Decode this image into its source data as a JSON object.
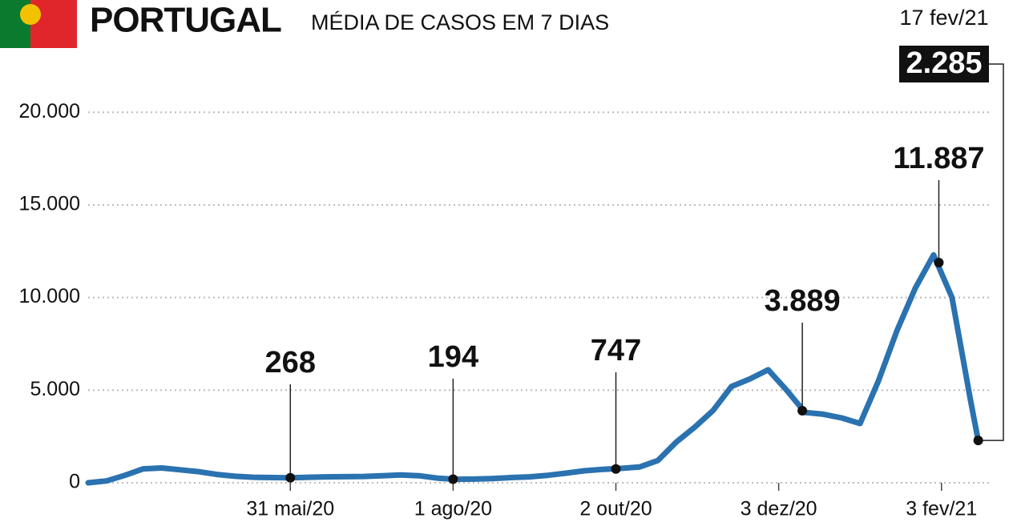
{
  "chart_data": {
    "type": "line",
    "title": "PORTUGAL",
    "subtitle": "MÉDIA DE CASOS EM 7 DIAS",
    "color": "#2a72b0",
    "x": [
      "2020-03-15",
      "2020-03-22",
      "2020-03-29",
      "2020-04-05",
      "2020-04-12",
      "2020-04-19",
      "2020-04-26",
      "2020-05-03",
      "2020-05-10",
      "2020-05-17",
      "2020-05-24",
      "2020-05-31",
      "2020-06-07",
      "2020-06-14",
      "2020-06-21",
      "2020-06-28",
      "2020-07-05",
      "2020-07-12",
      "2020-07-19",
      "2020-07-26",
      "2020-08-02",
      "2020-08-09",
      "2020-08-16",
      "2020-08-23",
      "2020-08-30",
      "2020-09-06",
      "2020-09-13",
      "2020-09-20",
      "2020-09-27",
      "2020-10-04",
      "2020-10-11",
      "2020-10-18",
      "2020-10-25",
      "2020-11-01",
      "2020-11-08",
      "2020-11-15",
      "2020-11-22",
      "2020-11-29",
      "2020-12-06",
      "2020-12-13",
      "2020-12-20",
      "2020-12-27",
      "2021-01-03",
      "2021-01-10",
      "2021-01-17",
      "2021-01-24",
      "2021-01-31",
      "2021-02-07",
      "2021-02-14",
      "2021-02-17"
    ],
    "values": [
      0,
      100,
      400,
      750,
      800,
      700,
      600,
      450,
      350,
      300,
      280,
      268,
      300,
      320,
      330,
      340,
      380,
      420,
      380,
      250,
      190,
      200,
      230,
      280,
      320,
      400,
      520,
      650,
      720,
      780,
      850,
      1200,
      2200,
      3000,
      3900,
      5200,
      5600,
      6100,
      5000,
      3800,
      3700,
      3500,
      3200,
      5500,
      8200,
      10500,
      12300,
      10000,
      4500,
      2285
    ],
    "xlim": [
      "2020-03-15",
      "2021-02-22"
    ],
    "xticks": [
      {
        "value": "2020-05-31",
        "label": "31 mai/20"
      },
      {
        "value": "2020-08-01",
        "label": "1 ago/20"
      },
      {
        "value": "2020-10-02",
        "label": "2 out/20"
      },
      {
        "value": "2020-12-03",
        "label": "3 dez/20"
      },
      {
        "value": "2021-02-03",
        "label": "3 fev/21"
      }
    ],
    "ylim": [
      0,
      22000
    ],
    "yticks": [
      0,
      {
        "value": 5000,
        "label": "5.000"
      },
      {
        "value": 10000,
        "label": "10.000"
      },
      {
        "value": 15000,
        "label": "15.000"
      },
      {
        "value": 20000,
        "label": "20.000"
      }
    ],
    "grid": true,
    "annotations": [
      {
        "x": "2020-05-31",
        "value": 268,
        "label": "268"
      },
      {
        "x": "2020-08-01",
        "value": 194,
        "label": "194"
      },
      {
        "x": "2020-10-02",
        "value": 747,
        "label": "747"
      },
      {
        "x": "2020-12-12",
        "value": 3889,
        "label": "3.889"
      },
      {
        "x": "2021-02-02",
        "value": 11887,
        "label": "11.887"
      },
      {
        "x": "2021-02-17",
        "value": 2285,
        "label": "2.285",
        "x_label": "17 fev/21"
      }
    ]
  }
}
